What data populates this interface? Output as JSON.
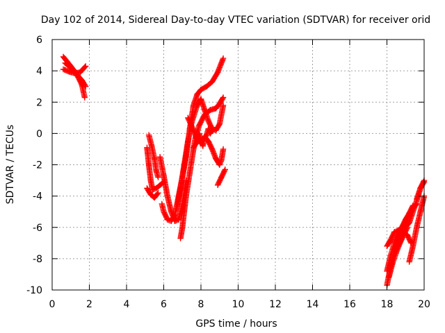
{
  "chart_data": {
    "type": "scatter",
    "title": "Day 102 of 2014, Sidereal Day-to-day VTEC variation (SDTVAR) for receiver orid",
    "xlabel": "GPS time / hours",
    "ylabel": "SDTVAR / TECUs",
    "xlim": [
      0,
      20
    ],
    "ylim": [
      -10,
      6
    ],
    "xticks": [
      0,
      2,
      4,
      6,
      8,
      10,
      12,
      14,
      16,
      18,
      20
    ],
    "yticks": [
      -10,
      -8,
      -6,
      -4,
      -2,
      0,
      2,
      4,
      6
    ],
    "grid": true,
    "marker": "plus",
    "color": "#ff0000",
    "tracks": [
      [
        [
          0.6,
          4.9
        ],
        [
          0.8,
          4.6
        ],
        [
          1.0,
          4.3
        ],
        [
          1.2,
          4.0
        ],
        [
          1.4,
          3.6
        ],
        [
          1.6,
          3.1
        ],
        [
          1.75,
          2.3
        ]
      ],
      [
        [
          0.6,
          4.1
        ],
        [
          0.9,
          3.95
        ],
        [
          1.2,
          3.85
        ],
        [
          1.5,
          3.9
        ],
        [
          1.8,
          4.3
        ]
      ],
      [
        [
          0.7,
          4.5
        ],
        [
          1.0,
          4.2
        ],
        [
          1.3,
          3.8
        ],
        [
          1.6,
          3.4
        ],
        [
          1.8,
          3.0
        ]
      ],
      [
        [
          5.2,
          -0.1
        ],
        [
          5.35,
          -0.8
        ],
        [
          5.5,
          -1.6
        ],
        [
          5.6,
          -2.4
        ],
        [
          5.7,
          -2.8
        ]
      ],
      [
        [
          5.1,
          -0.9
        ],
        [
          5.2,
          -2.0
        ],
        [
          5.3,
          -3.0
        ],
        [
          5.4,
          -3.6
        ],
        [
          5.6,
          -3.5
        ],
        [
          5.8,
          -3.3
        ],
        [
          6.0,
          -3.1
        ]
      ],
      [
        [
          5.1,
          -3.5
        ],
        [
          5.3,
          -3.9
        ],
        [
          5.5,
          -4.1
        ],
        [
          5.7,
          -3.8
        ]
      ],
      [
        [
          5.8,
          -1.5
        ],
        [
          6.0,
          -2.7
        ],
        [
          6.2,
          -4.0
        ],
        [
          6.4,
          -5.0
        ],
        [
          6.6,
          -5.6
        ],
        [
          6.8,
          -5.5
        ],
        [
          7.0,
          -4.5
        ],
        [
          7.2,
          -3.0
        ]
      ],
      [
        [
          5.9,
          -4.5
        ],
        [
          6.0,
          -5.0
        ],
        [
          6.2,
          -5.5
        ],
        [
          6.4,
          -5.6
        ],
        [
          6.6,
          -5.2
        ],
        [
          6.8,
          -4.0
        ],
        [
          7.0,
          -2.8
        ],
        [
          7.2,
          -1.5
        ],
        [
          7.4,
          0.3
        ],
        [
          7.6,
          1.8
        ],
        [
          7.8,
          2.5
        ],
        [
          8.0,
          2.8
        ],
        [
          8.3,
          3.0
        ],
        [
          8.6,
          3.3
        ],
        [
          8.9,
          3.9
        ],
        [
          9.2,
          4.8
        ]
      ],
      [
        [
          6.9,
          -6.7
        ],
        [
          7.0,
          -6.0
        ],
        [
          7.1,
          -5.0
        ],
        [
          7.2,
          -4.0
        ],
        [
          7.4,
          -2.5
        ],
        [
          7.6,
          -1.0
        ],
        [
          7.7,
          -0.3
        ],
        [
          7.9,
          0.5
        ],
        [
          8.2,
          1.2
        ],
        [
          8.5,
          1.5
        ],
        [
          8.8,
          1.6
        ],
        [
          9.0,
          1.9
        ],
        [
          9.2,
          2.3
        ]
      ],
      [
        [
          6.7,
          -4.8
        ],
        [
          6.9,
          -3.5
        ],
        [
          7.1,
          -2.0
        ],
        [
          7.3,
          -0.5
        ],
        [
          7.5,
          0.7
        ],
        [
          7.8,
          1.8
        ],
        [
          8.0,
          2.2
        ],
        [
          8.2,
          1.5
        ],
        [
          8.4,
          0.8
        ],
        [
          8.6,
          0.3
        ],
        [
          8.8,
          0.2
        ],
        [
          9.0,
          0.6
        ],
        [
          9.2,
          1.8
        ]
      ],
      [
        [
          7.3,
          1.0
        ],
        [
          7.6,
          0.2
        ],
        [
          7.8,
          -0.4
        ],
        [
          8.0,
          -0.6
        ],
        [
          8.2,
          -0.2
        ],
        [
          8.4,
          -0.5
        ],
        [
          8.6,
          -1.0
        ],
        [
          8.8,
          -1.6
        ],
        [
          9.0,
          -2.0
        ],
        [
          9.1,
          -1.7
        ],
        [
          9.2,
          -1.0
        ]
      ],
      [
        [
          7.6,
          -0.9
        ],
        [
          7.8,
          -0.5
        ],
        [
          7.9,
          0.0
        ],
        [
          8.0,
          -0.4
        ],
        [
          8.1,
          -0.8
        ],
        [
          8.2,
          -0.3
        ],
        [
          8.3,
          -0.1
        ],
        [
          8.4,
          0.3
        ],
        [
          8.5,
          0.0
        ],
        [
          8.6,
          0.2
        ]
      ],
      [
        [
          8.9,
          -3.3
        ],
        [
          9.1,
          -2.8
        ],
        [
          9.3,
          -2.3
        ]
      ],
      [
        [
          18.0,
          -9.7
        ],
        [
          18.2,
          -8.5
        ],
        [
          18.4,
          -7.5
        ],
        [
          18.6,
          -6.6
        ],
        [
          18.8,
          -6.1
        ],
        [
          19.0,
          -6.0
        ],
        [
          19.2,
          -5.7
        ],
        [
          19.4,
          -5.0
        ],
        [
          19.6,
          -4.3
        ],
        [
          19.8,
          -3.5
        ],
        [
          20.0,
          -3.0
        ]
      ],
      [
        [
          18.0,
          -7.2
        ],
        [
          18.2,
          -6.8
        ],
        [
          18.4,
          -6.3
        ],
        [
          18.6,
          -6.2
        ],
        [
          18.8,
          -6.0
        ],
        [
          19.0,
          -5.6
        ],
        [
          19.2,
          -5.1
        ],
        [
          19.4,
          -4.6
        ]
      ],
      [
        [
          18.0,
          -8.8
        ],
        [
          18.2,
          -7.8
        ],
        [
          18.4,
          -7.0
        ],
        [
          18.6,
          -6.5
        ],
        [
          18.8,
          -6.0
        ],
        [
          19.0,
          -5.5
        ],
        [
          19.2,
          -5.1
        ],
        [
          19.4,
          -4.8
        ],
        [
          19.6,
          -4.5
        ]
      ],
      [
        [
          18.1,
          -9.2
        ],
        [
          18.3,
          -8.3
        ],
        [
          18.5,
          -7.6
        ],
        [
          18.7,
          -7.0
        ],
        [
          18.9,
          -6.5
        ],
        [
          19.1,
          -6.0
        ]
      ],
      [
        [
          19.2,
          -8.2
        ],
        [
          19.4,
          -7.2
        ],
        [
          19.6,
          -6.0
        ],
        [
          19.8,
          -5.0
        ],
        [
          20.0,
          -4.0
        ]
      ],
      [
        [
          19.6,
          -4.2
        ],
        [
          19.8,
          -3.5
        ],
        [
          20.0,
          -3.1
        ]
      ],
      [
        [
          18.5,
          -7.4
        ],
        [
          18.7,
          -6.9
        ],
        [
          18.9,
          -6.3
        ],
        [
          19.1,
          -6.5
        ],
        [
          19.3,
          -7.0
        ]
      ]
    ]
  }
}
